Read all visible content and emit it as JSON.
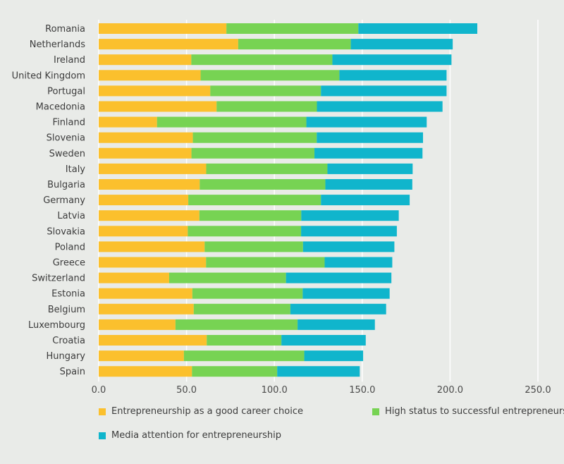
{
  "chart_data": {
    "type": "bar",
    "orientation": "horizontal",
    "stacked": true,
    "categories": [
      "Romania",
      "Netherlands",
      "Ireland",
      "United Kingdom",
      "Portugal",
      "Macedonia",
      "Finland",
      "Slovenia",
      "Sweden",
      "Italy",
      "Bulgaria",
      "Germany",
      "Latvia",
      "Slovakia",
      "Poland",
      "Greece",
      "Switzerland",
      "Estonia",
      "Belgium",
      "Luxembourg",
      "Croatia",
      "Hungary",
      "Spain"
    ],
    "series": [
      {
        "name": "Entrepreneurship as a good career choice",
        "color": "#fbc02d",
        "values": [
          72.7,
          79.4,
          52.7,
          58.0,
          63.5,
          67.1,
          33.2,
          53.6,
          52.8,
          61.2,
          57.5,
          51.0,
          57.3,
          50.7,
          60.3,
          61.1,
          40.1,
          53.3,
          54.1,
          43.7,
          61.5,
          48.5,
          53.1
        ]
      },
      {
        "name": "High status to successful entrepreneurs",
        "color": "#77d353",
        "values": [
          75.1,
          64.1,
          80.3,
          79.0,
          63.0,
          57.1,
          85.0,
          70.5,
          70.0,
          69.0,
          71.5,
          75.5,
          58.0,
          64.5,
          56.0,
          67.5,
          66.5,
          62.8,
          55.0,
          69.5,
          42.5,
          68.5,
          48.5
        ]
      },
      {
        "name": "Media attention for entrepreneurship",
        "color": "#10b5cc",
        "values": [
          67.7,
          58.0,
          67.8,
          61.0,
          71.5,
          71.5,
          68.5,
          60.5,
          61.5,
          48.5,
          49.5,
          50.5,
          55.5,
          54.5,
          52.0,
          38.5,
          60.0,
          49.5,
          54.5,
          44.0,
          48.0,
          33.5,
          47.0
        ]
      }
    ],
    "x_ticks": [
      "0.0",
      "50.0",
      "100.0",
      "150.0",
      "200.0",
      "250.0"
    ],
    "xlim": [
      0,
      250
    ],
    "grid": "vertical",
    "legend_position": "bottom"
  }
}
